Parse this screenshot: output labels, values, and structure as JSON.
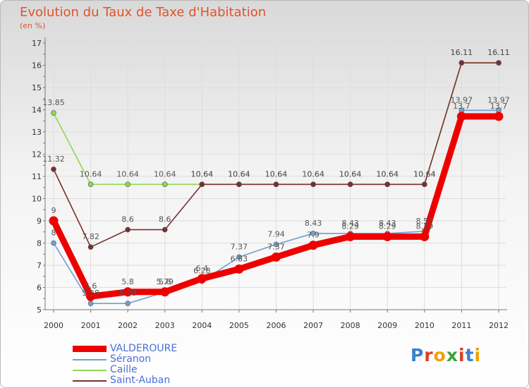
{
  "title": "Evolution du Taux de Taxe d'Habitation",
  "unit_label": "(en %)",
  "logo_text": "Proxiti",
  "colors": {
    "valderoure": "#ee0000",
    "seranon": "#6ea0d2",
    "caille": "#90d850",
    "saint_auban": "#7a3030",
    "axis_text": "#333333",
    "title": "#e0542a",
    "legend_text": "#4b6fd6"
  },
  "chart_data": {
    "type": "line",
    "title": "Evolution du Taux de Taxe d'Habitation",
    "ylabel": "(en %)",
    "xlabel": "",
    "x": [
      "2000",
      "2001",
      "2002",
      "2003",
      "2004",
      "2005",
      "2006",
      "2007",
      "2008",
      "2009",
      "2010",
      "2011",
      "2012"
    ],
    "ylim": [
      5,
      17
    ],
    "yticks": [
      5,
      6,
      7,
      8,
      9,
      10,
      11,
      12,
      13,
      14,
      15,
      16,
      17
    ],
    "grid": true,
    "legend_position": "bottom-left",
    "series": [
      {
        "name": "VALDEROURE",
        "key": "valderoure",
        "values": [
          9,
          5.6,
          5.8,
          5.8,
          6.4,
          6.83,
          7.37,
          7.9,
          8.29,
          8.29,
          8.29,
          13.7,
          13.7
        ],
        "labels": [
          "9",
          "5.6",
          "5.8",
          "5.8",
          "6.4",
          "6.83",
          "7.37",
          "7.9",
          "8.29",
          "8.29",
          "8.29",
          "13.7",
          "13.7"
        ]
      },
      {
        "name": "Séranon",
        "key": "seranon",
        "values": [
          8,
          5.28,
          5.28,
          5.79,
          6.28,
          7.37,
          7.94,
          8.43,
          8.43,
          8.43,
          8.53,
          13.97,
          13.97
        ],
        "labels": [
          "8",
          "5.28",
          "5.28",
          "5.79",
          "6.28",
          "7.37",
          "7.94",
          "8.43",
          "8.43",
          "8.43",
          "8.53",
          "13.97",
          "13.97"
        ]
      },
      {
        "name": "Caille",
        "key": "caille",
        "values": [
          13.85,
          10.64,
          10.64,
          10.64,
          10.64,
          10.64,
          10.64,
          10.64,
          10.64,
          10.64,
          10.64,
          16.11,
          16.11
        ],
        "labels": [
          "13.85",
          "10.64",
          "10.64",
          "10.64",
          "10.64",
          "10.64",
          "10.64",
          "10.64",
          "10.64",
          "10.64",
          "10.64",
          "16.11",
          "16.11"
        ]
      },
      {
        "name": "Saint-Auban",
        "key": "saint_auban",
        "values": [
          11.32,
          7.82,
          8.6,
          8.6,
          10.64,
          10.64,
          10.64,
          10.64,
          10.64,
          10.64,
          10.64,
          16.11,
          16.11
        ],
        "labels": [
          "11.32",
          "7.82",
          "8.6",
          "8.6",
          "10.64",
          "10.64",
          "10.64",
          "10.64",
          "10.64",
          "10.64",
          "10.64",
          "16.11",
          "16.11"
        ]
      }
    ]
  }
}
